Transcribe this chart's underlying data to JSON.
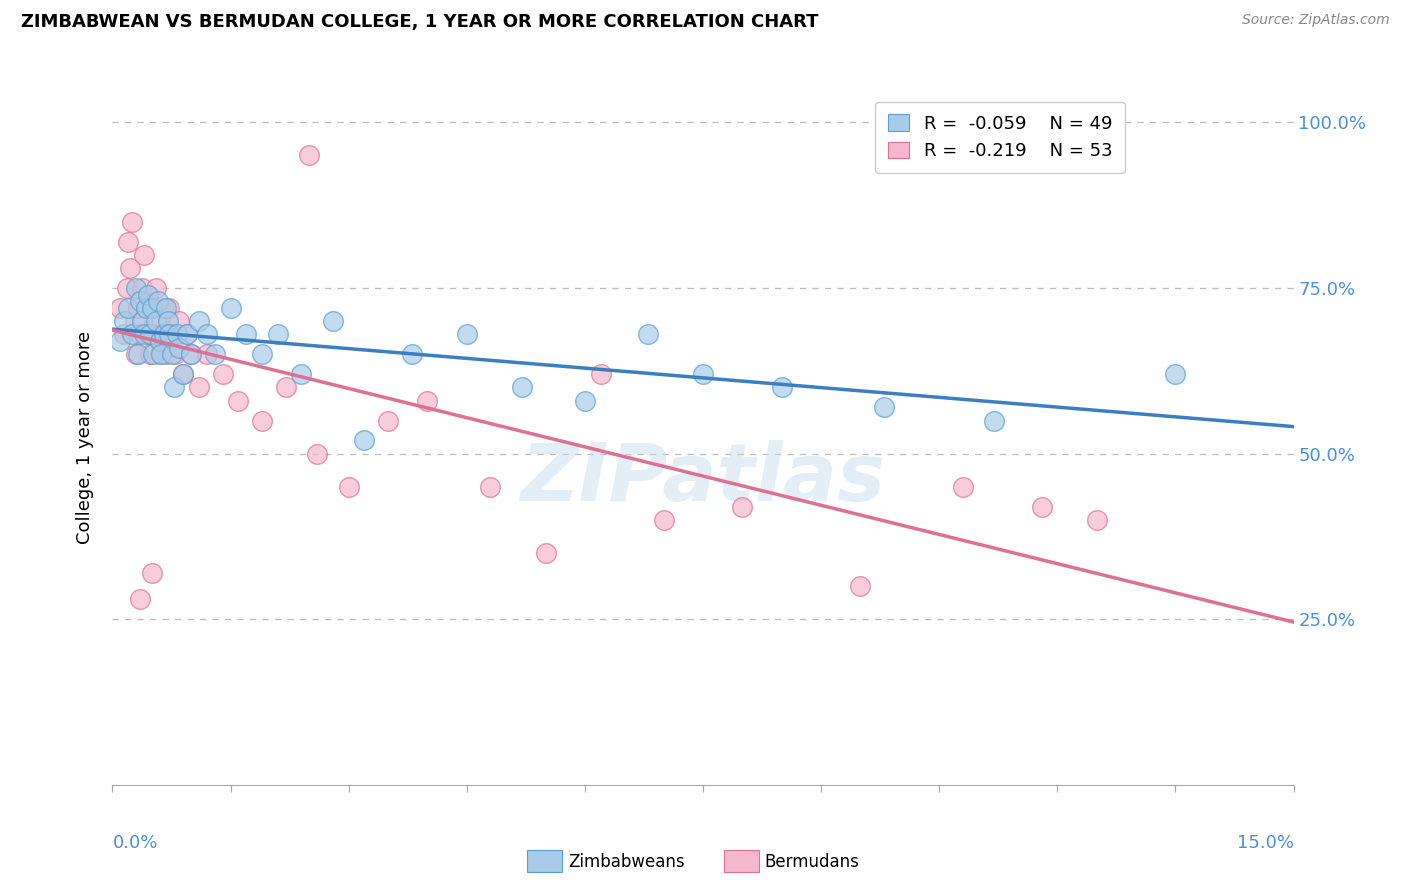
{
  "title": "ZIMBABWEAN VS BERMUDAN COLLEGE, 1 YEAR OR MORE CORRELATION CHART",
  "source": "Source: ZipAtlas.com",
  "ylabel": "College, 1 year or more",
  "xmin": 0.0,
  "xmax": 15.0,
  "ymin": 0.0,
  "ymax": 105.0,
  "ytick_vals": [
    25.0,
    50.0,
    75.0,
    100.0
  ],
  "xtick_vals": [
    0.0,
    1.5,
    3.0,
    4.5,
    6.0,
    7.5,
    9.0,
    10.5,
    12.0,
    13.5,
    15.0
  ],
  "zim_color": "#a8cce8",
  "ber_color": "#f4b8ce",
  "zim_edge": "#5a9fd4",
  "ber_edge": "#e07090",
  "trend_zim_color": "#3a7fc1",
  "trend_ber_color": "#e07090",
  "watermark": "ZIPatlas",
  "zim_R": -0.059,
  "ber_R": -0.219,
  "zim_N": 49,
  "ber_N": 53,
  "legend_R_color": "#cc2255",
  "tick_label_color": "#4a90d9",
  "zimbabwean_x": [
    0.1,
    0.15,
    0.2,
    0.25,
    0.3,
    0.32,
    0.35,
    0.38,
    0.4,
    0.42,
    0.45,
    0.48,
    0.5,
    0.52,
    0.55,
    0.58,
    0.6,
    0.62,
    0.65,
    0.68,
    0.7,
    0.72,
    0.75,
    0.78,
    0.82,
    0.85,
    0.9,
    0.95,
    1.0,
    1.1,
    1.2,
    1.3,
    1.5,
    1.7,
    1.9,
    2.1,
    2.4,
    2.8,
    3.2,
    3.8,
    4.5,
    5.2,
    6.0,
    6.8,
    7.5,
    8.5,
    9.8,
    11.2,
    13.5
  ],
  "zimbabwean_y": [
    67,
    70,
    72,
    68,
    75,
    65,
    73,
    70,
    68,
    72,
    74,
    68,
    72,
    65,
    70,
    73,
    67,
    65,
    68,
    72,
    70,
    68,
    65,
    60,
    68,
    66,
    62,
    68,
    65,
    70,
    68,
    65,
    72,
    68,
    65,
    68,
    62,
    70,
    52,
    65,
    68,
    60,
    58,
    68,
    62,
    60,
    57,
    55,
    62
  ],
  "bermudan_x": [
    0.1,
    0.15,
    0.18,
    0.2,
    0.22,
    0.25,
    0.28,
    0.3,
    0.32,
    0.35,
    0.38,
    0.4,
    0.42,
    0.45,
    0.48,
    0.5,
    0.52,
    0.55,
    0.58,
    0.6,
    0.62,
    0.65,
    0.68,
    0.7,
    0.72,
    0.75,
    0.8,
    0.85,
    0.9,
    0.95,
    1.0,
    1.1,
    1.2,
    1.4,
    1.6,
    1.9,
    2.2,
    2.6,
    3.0,
    3.5,
    4.0,
    4.8,
    5.5,
    6.2,
    7.0,
    8.0,
    9.5,
    10.8,
    11.8,
    12.5,
    2.5,
    0.35,
    0.5
  ],
  "bermudan_y": [
    72,
    68,
    75,
    82,
    78,
    85,
    70,
    65,
    72,
    68,
    75,
    80,
    72,
    68,
    65,
    72,
    68,
    75,
    70,
    65,
    68,
    72,
    65,
    68,
    72,
    68,
    65,
    70,
    62,
    68,
    65,
    60,
    65,
    62,
    58,
    55,
    60,
    50,
    45,
    55,
    58,
    45,
    35,
    62,
    40,
    42,
    30,
    45,
    42,
    40,
    95,
    28,
    32
  ]
}
